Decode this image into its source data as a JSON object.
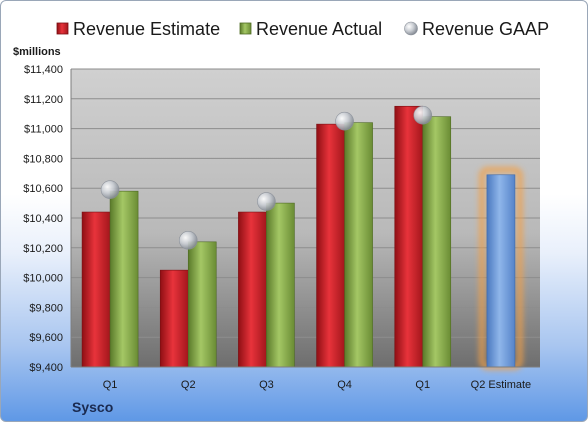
{
  "company": "Sysco",
  "colors": {
    "estimate": "#d8222b",
    "actual": "#8cb04a",
    "gaap": "#b9bec6",
    "forecast": "#6f9edc",
    "forecast_glow": "#f3a046"
  },
  "chart_data": {
    "type": "bar",
    "unit_label": "$millions",
    "ylim": [
      9400,
      11400
    ],
    "yticks": [
      9400,
      9600,
      9800,
      10000,
      10200,
      10400,
      10600,
      10800,
      11000,
      11200,
      11400
    ],
    "ytick_labels": [
      "$9,400",
      "$9,600",
      "$9,800",
      "$10,000",
      "$10,200",
      "$10,400",
      "$10,600",
      "$10,800",
      "$11,000",
      "$11,200",
      "$11,400"
    ],
    "grid": true,
    "legend": "top",
    "categories": [
      "Q1",
      "Q2",
      "Q3",
      "Q4",
      "Q1",
      "Q2 Estimate"
    ],
    "series": [
      {
        "name": "Revenue Estimate",
        "type": "bar",
        "values": [
          10440,
          10050,
          10440,
          11030,
          11150,
          null
        ]
      },
      {
        "name": "Revenue Actual",
        "type": "bar",
        "values": [
          10580,
          10240,
          10500,
          11040,
          11080,
          null
        ]
      },
      {
        "name": "Revenue GAAP",
        "type": "scatter",
        "values": [
          10590,
          10250,
          10510,
          11050,
          11090,
          null
        ]
      }
    ],
    "forecast": {
      "category": "Q2 Estimate",
      "value": 10690
    }
  }
}
